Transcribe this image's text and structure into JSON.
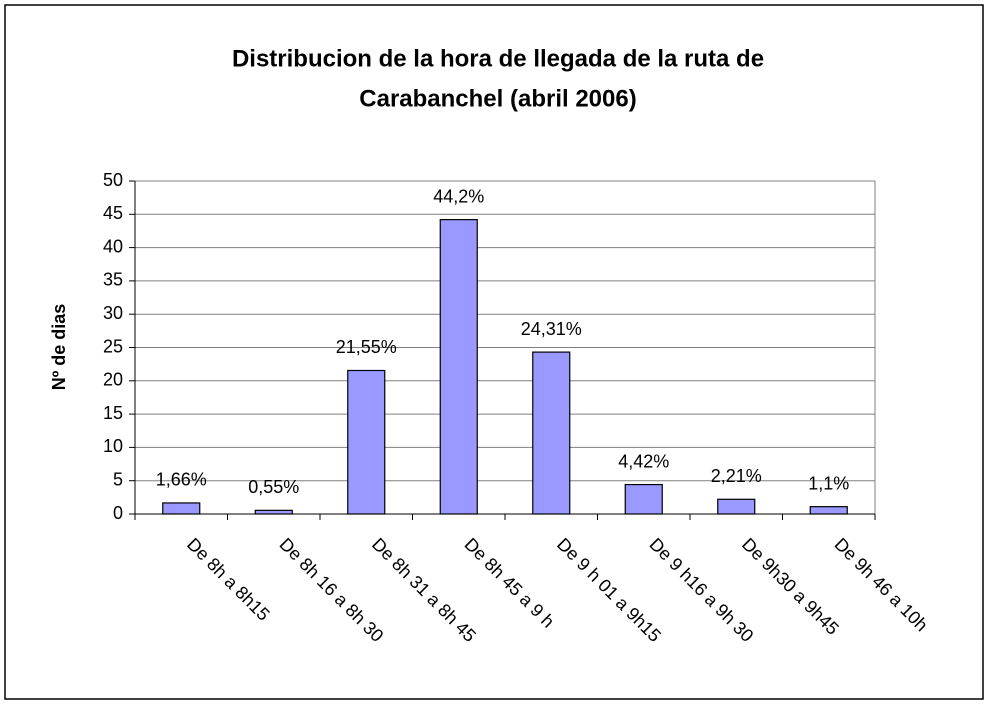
{
  "chart_data": {
    "type": "bar",
    "title": [
      "Distribucion de la hora de llegada de la ruta de",
      "Carabanchel (abril 2006)"
    ],
    "y_label": "Nº de dias",
    "categories": [
      "De 8h a 8h15",
      "De 8h 16 a 8h 30",
      "De 8h 31 a 8h 45",
      "De 8h 45 a 9 h",
      "De 9 h 01 a 9h15",
      "De 9 h16 a 9h 30",
      "De 9h30 a 9h45",
      "De 9h 46 a 10h"
    ],
    "values": [
      1.66,
      0.55,
      21.55,
      44.2,
      24.31,
      4.42,
      2.21,
      1.1
    ],
    "value_labels": [
      "1,66%",
      "0,55%",
      "21,55%",
      "44,2%",
      "24,31%",
      "4,42%",
      "2,21%",
      "1,1%"
    ],
    "color": "#9999ff",
    "ylim": [
      0,
      50
    ],
    "yticks": [
      0,
      5,
      10,
      15,
      20,
      25,
      30,
      35,
      40,
      45,
      50
    ],
    "grid": true
  }
}
